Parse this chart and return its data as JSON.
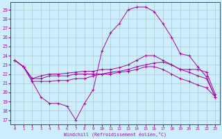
{
  "xlabel": "Windchill (Refroidissement éolien,°C)",
  "bg_color": "#cceeff",
  "grid_color": "#aacccc",
  "line_color": "#aa00aa",
  "spine_color": "#6600aa",
  "xlim": [
    -0.5,
    23.5
  ],
  "ylim": [
    16.5,
    29.8
  ],
  "yticks": [
    17,
    18,
    19,
    20,
    21,
    22,
    23,
    24,
    25,
    26,
    27,
    28,
    29
  ],
  "xticks": [
    0,
    1,
    2,
    3,
    4,
    5,
    6,
    7,
    8,
    9,
    10,
    11,
    12,
    13,
    14,
    15,
    16,
    17,
    18,
    19,
    20,
    21,
    22,
    23
  ],
  "series": [
    {
      "x": [
        0,
        1,
        2,
        3,
        4,
        5,
        6,
        7,
        8,
        9,
        10,
        11,
        12,
        13,
        14,
        15,
        16,
        17,
        18,
        19,
        20,
        21,
        22,
        23
      ],
      "y": [
        23.5,
        22.8,
        21.2,
        21.2,
        21.2,
        21.3,
        21.3,
        21.5,
        21.5,
        21.8,
        22.0,
        22.2,
        22.3,
        22.5,
        22.8,
        23.0,
        23.2,
        23.3,
        23.0,
        22.5,
        22.2,
        21.8,
        21.5,
        19.5
      ]
    },
    {
      "x": [
        0,
        1,
        2,
        3,
        4,
        5,
        6,
        7,
        8,
        9,
        10,
        11,
        12,
        13,
        14,
        15,
        16,
        17,
        18,
        19,
        20,
        21,
        22,
        23
      ],
      "y": [
        23.5,
        22.8,
        21.2,
        19.5,
        18.8,
        18.8,
        18.5,
        17.0,
        18.8,
        20.3,
        24.5,
        26.5,
        27.5,
        29.0,
        29.3,
        29.3,
        28.8,
        27.5,
        26.0,
        24.2,
        24.0,
        22.8,
        21.7,
        19.5
      ]
    },
    {
      "x": [
        0,
        1,
        2,
        3,
        4,
        5,
        6,
        7,
        8,
        9,
        10,
        11,
        12,
        13,
        14,
        15,
        16,
        17,
        18,
        19,
        20,
        21,
        22,
        23
      ],
      "y": [
        23.5,
        22.8,
        21.5,
        21.8,
        22.0,
        22.0,
        22.1,
        22.2,
        22.3,
        22.3,
        22.5,
        22.5,
        22.7,
        23.0,
        23.5,
        24.0,
        24.0,
        23.5,
        23.0,
        22.5,
        22.5,
        22.5,
        22.2,
        19.8
      ]
    },
    {
      "x": [
        0,
        1,
        2,
        3,
        4,
        5,
        6,
        7,
        8,
        9,
        10,
        11,
        12,
        13,
        14,
        15,
        16,
        17,
        18,
        19,
        20,
        21,
        22,
        23
      ],
      "y": [
        23.5,
        22.8,
        21.5,
        21.5,
        21.8,
        21.8,
        21.8,
        22.0,
        22.0,
        22.0,
        22.0,
        22.0,
        22.2,
        22.3,
        22.5,
        22.8,
        22.8,
        22.5,
        22.0,
        21.5,
        21.2,
        20.8,
        20.5,
        19.5
      ]
    }
  ]
}
